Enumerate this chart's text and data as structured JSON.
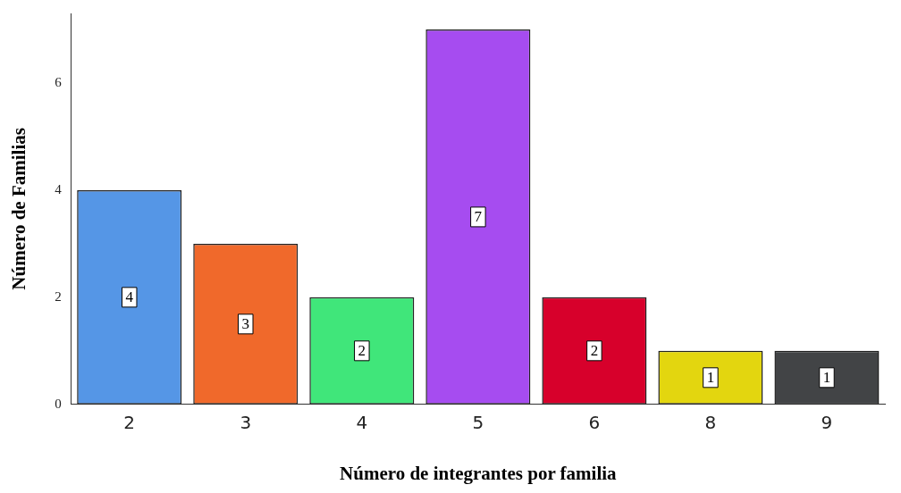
{
  "chart_data": {
    "type": "bar",
    "xlabel": "Número de integrantes por familia",
    "ylabel": "Número de Familias",
    "categories": [
      "2",
      "3",
      "4",
      "5",
      "6",
      "8",
      "9"
    ],
    "values": [
      4,
      3,
      2,
      7,
      2,
      1,
      1
    ],
    "colors": [
      "#5596e6",
      "#f0692b",
      "#40e67a",
      "#a64cf0",
      "#d7002b",
      "#e3d60f",
      "#424446"
    ],
    "ylim": [
      0,
      7.3
    ],
    "yticks": [
      0,
      2,
      4,
      6
    ],
    "grid": false,
    "legend": false,
    "data_labels": true
  }
}
